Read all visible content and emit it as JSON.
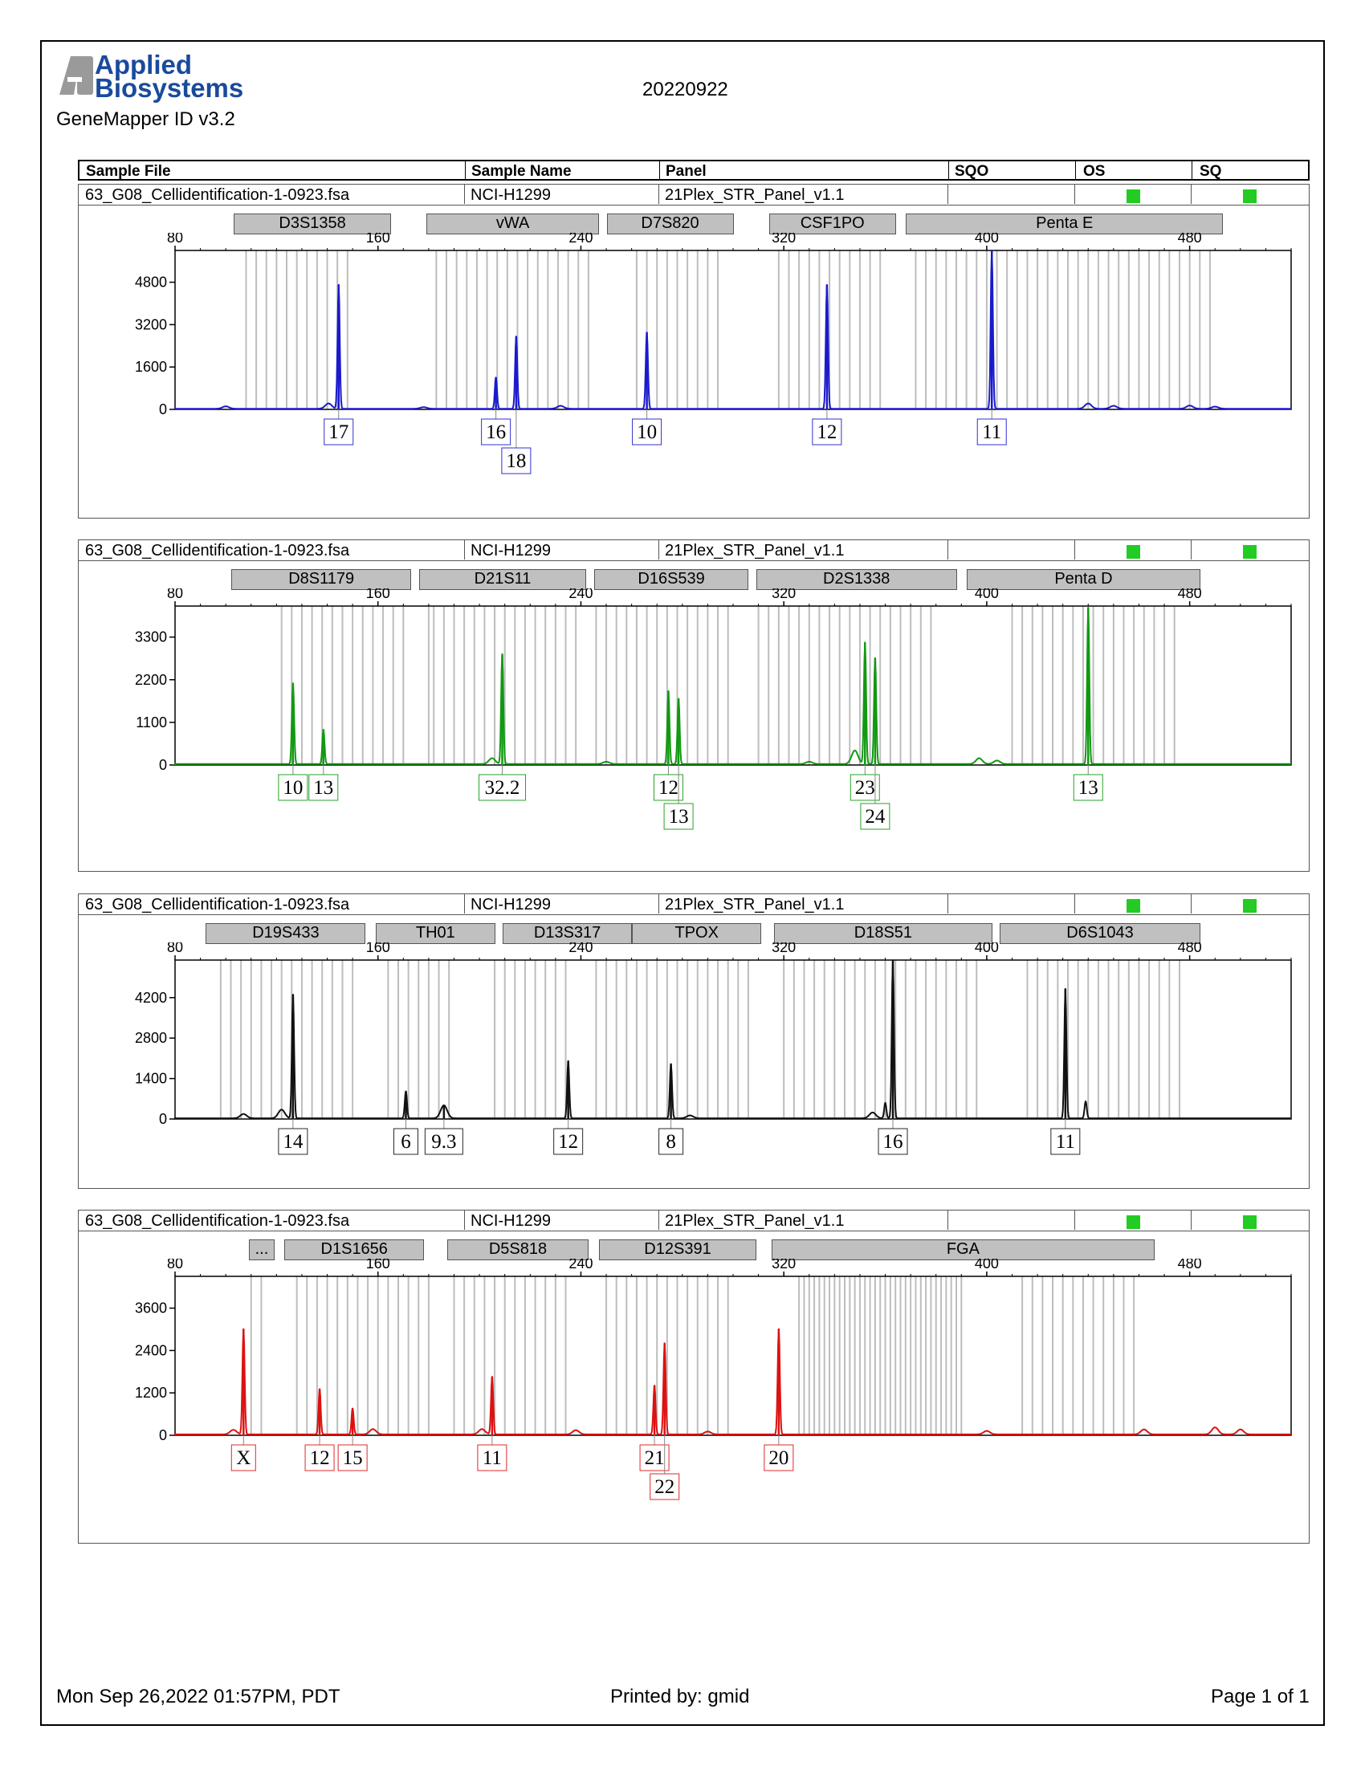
{
  "report": {
    "brand_line1": "Applied",
    "brand_line2": "Biosystems",
    "app_version": "GeneMapper ID v3.2",
    "run_date": "20220922",
    "columns": [
      "Sample File",
      "Sample Name",
      "Panel",
      "SQO",
      "OS",
      "SQ"
    ],
    "footer_left": "Mon Sep 26,2022 01:57PM, PDT",
    "footer_center": "Printed by: gmid",
    "footer_right": "Page 1 of 1",
    "quality_flag_color": "#22cc22"
  },
  "panels": [
    {
      "sample_file": "63_G08_Cellidentification-1-0923.fsa",
      "sample_name": "NCI-H1299",
      "panel": "21Plex_STR_Panel_v1.1",
      "markers": [
        {
          "name": "D3S1358",
          "start": 100,
          "end": 162
        },
        {
          "name": "vWA",
          "start": 176,
          "end": 244
        },
        {
          "name": "D7S820",
          "start": 247,
          "end": 297
        },
        {
          "name": "CSF1PO",
          "start": 311,
          "end": 361
        },
        {
          "name": "Penta E",
          "start": 365,
          "end": 490
        }
      ]
    },
    {
      "sample_file": "63_G08_Cellidentification-1-0923.fsa",
      "sample_name": "NCI-H1299",
      "panel": "21Plex_STR_Panel_v1.1",
      "markers": [
        {
          "name": "D8S1179",
          "start": 99,
          "end": 170
        },
        {
          "name": "D21S11",
          "start": 173,
          "end": 239
        },
        {
          "name": "D16S539",
          "start": 242,
          "end": 303
        },
        {
          "name": "D2S1338",
          "start": 306,
          "end": 385
        },
        {
          "name": "Penta D",
          "start": 389,
          "end": 481
        }
      ]
    },
    {
      "sample_file": "63_G08_Cellidentification-1-0923.fsa",
      "sample_name": "NCI-H1299",
      "panel": "21Plex_STR_Panel_v1.1",
      "markers": [
        {
          "name": "D19S433",
          "start": 89,
          "end": 152
        },
        {
          "name": "TH01",
          "start": 156,
          "end": 203
        },
        {
          "name": "D13S317",
          "start": 206,
          "end": 257
        },
        {
          "name": "TPOX",
          "start": 257,
          "end": 308
        },
        {
          "name": "D18S51",
          "start": 313,
          "end": 399
        },
        {
          "name": "D6S1043",
          "start": 402,
          "end": 481
        }
      ]
    },
    {
      "sample_file": "63_G08_Cellidentification-1-0923.fsa",
      "sample_name": "NCI-H1299",
      "panel": "21Plex_STR_Panel_v1.1",
      "markers": [
        {
          "name": "...",
          "start": 106,
          "end": 116
        },
        {
          "name": "D1S1656",
          "start": 120,
          "end": 175
        },
        {
          "name": "D5S818",
          "start": 184,
          "end": 240
        },
        {
          "name": "D12S391",
          "start": 244,
          "end": 306
        },
        {
          "name": "FGA",
          "start": 312,
          "end": 463
        }
      ]
    }
  ],
  "chart_data": [
    {
      "type": "line",
      "dye_color": "#1a1acc",
      "x_ticks": [
        80,
        160,
        240,
        320,
        400,
        480
      ],
      "xlim": [
        80,
        520
      ],
      "y_ticks": [
        0,
        1600,
        3200,
        4800
      ],
      "ylim": [
        0,
        6000
      ],
      "bins": [
        108,
        112,
        116,
        120,
        124,
        128,
        132,
        136,
        140,
        144,
        148,
        183,
        187,
        191,
        195,
        199,
        203,
        207,
        211,
        215,
        219,
        223,
        227,
        231,
        235,
        239,
        243,
        262,
        266,
        270,
        274,
        278,
        282,
        286,
        290,
        294,
        318,
        322,
        326,
        330,
        334,
        338,
        342,
        346,
        350,
        354,
        358,
        372,
        376,
        380,
        384,
        388,
        392,
        396,
        400,
        404,
        408,
        412,
        416,
        420,
        424,
        428,
        432,
        436,
        440,
        444,
        448,
        452,
        456,
        460,
        464,
        468,
        472,
        476,
        480,
        484,
        488
      ],
      "peaks": [
        {
          "x": 144.5,
          "y": 4700,
          "label": "17",
          "row": 0
        },
        {
          "x": 140.5,
          "y": 200,
          "label": "",
          "row": -1
        },
        {
          "x": 206.5,
          "y": 1200,
          "label": "16",
          "row": 0
        },
        {
          "x": 214.5,
          "y": 2750,
          "label": "18",
          "row": 1
        },
        {
          "x": 266,
          "y": 2900,
          "label": "10",
          "row": 0
        },
        {
          "x": 337,
          "y": 4700,
          "label": "12",
          "row": 0
        },
        {
          "x": 402,
          "y": 6000,
          "label": "11",
          "row": 0
        },
        {
          "x": 100,
          "y": 90,
          "label": "",
          "row": -1
        },
        {
          "x": 178,
          "y": 60,
          "label": "",
          "row": -1
        },
        {
          "x": 232,
          "y": 110,
          "label": "",
          "row": -1
        },
        {
          "x": 440,
          "y": 200,
          "label": "",
          "row": -1
        },
        {
          "x": 450,
          "y": 110,
          "label": "",
          "row": -1
        },
        {
          "x": 480,
          "y": 120,
          "label": "",
          "row": -1
        },
        {
          "x": 490,
          "y": 80,
          "label": "",
          "row": -1
        }
      ]
    },
    {
      "type": "line",
      "dye_color": "#119911",
      "x_ticks": [
        80,
        160,
        240,
        320,
        400,
        480
      ],
      "xlim": [
        80,
        520
      ],
      "y_ticks": [
        0,
        1100,
        2200,
        3300
      ],
      "ylim": [
        0,
        4100
      ],
      "bins": [
        122,
        126,
        130,
        134,
        138,
        142,
        146,
        150,
        154,
        158,
        162,
        166,
        170,
        180,
        182,
        186,
        190,
        194,
        198,
        202,
        206,
        210,
        214,
        218,
        222,
        226,
        230,
        234,
        238,
        246,
        250,
        254,
        258,
        262,
        266,
        270,
        274,
        278,
        282,
        286,
        290,
        294,
        298,
        310,
        314,
        318,
        322,
        326,
        330,
        334,
        338,
        342,
        346,
        350,
        354,
        358,
        362,
        366,
        370,
        374,
        378,
        410,
        414,
        418,
        422,
        426,
        430,
        434,
        438,
        442,
        446,
        450,
        454,
        458,
        462,
        466,
        470,
        474
      ],
      "peaks": [
        {
          "x": 126.5,
          "y": 2100,
          "label": "10",
          "row": 0
        },
        {
          "x": 138.5,
          "y": 900,
          "label": "13",
          "row": 0
        },
        {
          "x": 209,
          "y": 2850,
          "label": "32.2",
          "row": 0
        },
        {
          "x": 205,
          "y": 150,
          "label": "",
          "row": -1
        },
        {
          "x": 274.5,
          "y": 1900,
          "label": "12",
          "row": 0
        },
        {
          "x": 278.5,
          "y": 1700,
          "label": "13",
          "row": 1
        },
        {
          "x": 352,
          "y": 3150,
          "label": "23",
          "row": 0
        },
        {
          "x": 356,
          "y": 2750,
          "label": "24",
          "row": 1
        },
        {
          "x": 348,
          "y": 350,
          "label": "",
          "row": -1
        },
        {
          "x": 440,
          "y": 4050,
          "label": "13",
          "row": 0
        },
        {
          "x": 397,
          "y": 150,
          "label": "",
          "row": -1
        },
        {
          "x": 404,
          "y": 90,
          "label": "",
          "row": -1
        },
        {
          "x": 330,
          "y": 60,
          "label": "",
          "row": -1
        },
        {
          "x": 250,
          "y": 60,
          "label": "",
          "row": -1
        }
      ]
    },
    {
      "type": "line",
      "dye_color": "#111111",
      "x_ticks": [
        80,
        160,
        240,
        320,
        400,
        480
      ],
      "xlim": [
        80,
        520
      ],
      "y_ticks": [
        0,
        1400,
        2800,
        4200
      ],
      "ylim": [
        0,
        5500
      ],
      "bins": [
        98,
        102,
        106,
        110,
        114,
        118,
        122,
        126,
        130,
        134,
        138,
        142,
        146,
        150,
        164,
        168,
        172,
        176,
        180,
        184,
        188,
        206,
        210,
        214,
        218,
        222,
        226,
        230,
        234,
        246,
        250,
        254,
        258,
        262,
        266,
        270,
        274,
        278,
        282,
        286,
        290,
        294,
        298,
        302,
        306,
        320,
        324,
        328,
        332,
        336,
        340,
        344,
        348,
        352,
        356,
        360,
        364,
        368,
        372,
        376,
        380,
        384,
        388,
        392,
        396,
        416,
        420,
        424,
        428,
        432,
        436,
        440,
        444,
        448,
        452,
        456,
        460,
        464,
        468,
        472,
        476
      ],
      "peaks": [
        {
          "x": 126.5,
          "y": 4300,
          "label": "14",
          "row": 0
        },
        {
          "x": 122,
          "y": 300,
          "label": "",
          "row": -1
        },
        {
          "x": 107,
          "y": 150,
          "label": "",
          "row": -1
        },
        {
          "x": 171,
          "y": 950,
          "label": "6",
          "row": 0
        },
        {
          "x": 186,
          "y": 450,
          "label": "9.3",
          "row": 0
        },
        {
          "x": 235,
          "y": 2000,
          "label": "12",
          "row": 0
        },
        {
          "x": 275.5,
          "y": 1900,
          "label": "8",
          "row": 0
        },
        {
          "x": 363,
          "y": 5500,
          "label": "16",
          "row": 0
        },
        {
          "x": 360,
          "y": 550,
          "label": "",
          "row": -1
        },
        {
          "x": 355,
          "y": 200,
          "label": "",
          "row": -1
        },
        {
          "x": 431,
          "y": 4500,
          "label": "11",
          "row": 0
        },
        {
          "x": 439,
          "y": 600,
          "label": "",
          "row": -1
        },
        {
          "x": 283,
          "y": 100,
          "label": "",
          "row": -1
        }
      ]
    },
    {
      "type": "line",
      "dye_color": "#dd1111",
      "x_ticks": [
        80,
        160,
        240,
        320,
        400,
        480
      ],
      "xlim": [
        80,
        520
      ],
      "y_ticks": [
        0,
        1200,
        2400,
        3600
      ],
      "ylim": [
        0,
        4500
      ],
      "bins": [
        110,
        114,
        128,
        132,
        136,
        140,
        144,
        148,
        152,
        156,
        160,
        164,
        168,
        172,
        176,
        180,
        190,
        194,
        198,
        202,
        206,
        210,
        214,
        218,
        222,
        226,
        230,
        234,
        250,
        254,
        258,
        262,
        266,
        270,
        274,
        278,
        282,
        286,
        290,
        294,
        298,
        326,
        328,
        330,
        332,
        334,
        336,
        338,
        340,
        342,
        344,
        346,
        348,
        350,
        352,
        354,
        356,
        358,
        360,
        362,
        364,
        366,
        368,
        370,
        372,
        374,
        376,
        378,
        380,
        382,
        384,
        386,
        388,
        390,
        414,
        418,
        422,
        426,
        430,
        434,
        438,
        442,
        446,
        450,
        454,
        458
      ],
      "peaks": [
        {
          "x": 107,
          "y": 3000,
          "label": "X",
          "row": 0
        },
        {
          "x": 103,
          "y": 130,
          "label": "",
          "row": -1
        },
        {
          "x": 137,
          "y": 1300,
          "label": "12",
          "row": 0
        },
        {
          "x": 150,
          "y": 750,
          "label": "15",
          "row": 0
        },
        {
          "x": 158,
          "y": 150,
          "label": "",
          "row": -1
        },
        {
          "x": 205,
          "y": 1650,
          "label": "11",
          "row": 0
        },
        {
          "x": 201,
          "y": 150,
          "label": "",
          "row": -1
        },
        {
          "x": 269,
          "y": 1400,
          "label": "21",
          "row": 0
        },
        {
          "x": 273,
          "y": 2600,
          "label": "22",
          "row": 1
        },
        {
          "x": 318,
          "y": 3000,
          "label": "20",
          "row": 0
        },
        {
          "x": 238,
          "y": 120,
          "label": "",
          "row": -1
        },
        {
          "x": 290,
          "y": 80,
          "label": "",
          "row": -1
        },
        {
          "x": 400,
          "y": 100,
          "label": "",
          "row": -1
        },
        {
          "x": 462,
          "y": 140,
          "label": "",
          "row": -1
        },
        {
          "x": 490,
          "y": 200,
          "label": "",
          "row": -1
        },
        {
          "x": 500,
          "y": 140,
          "label": "",
          "row": -1
        }
      ]
    }
  ]
}
